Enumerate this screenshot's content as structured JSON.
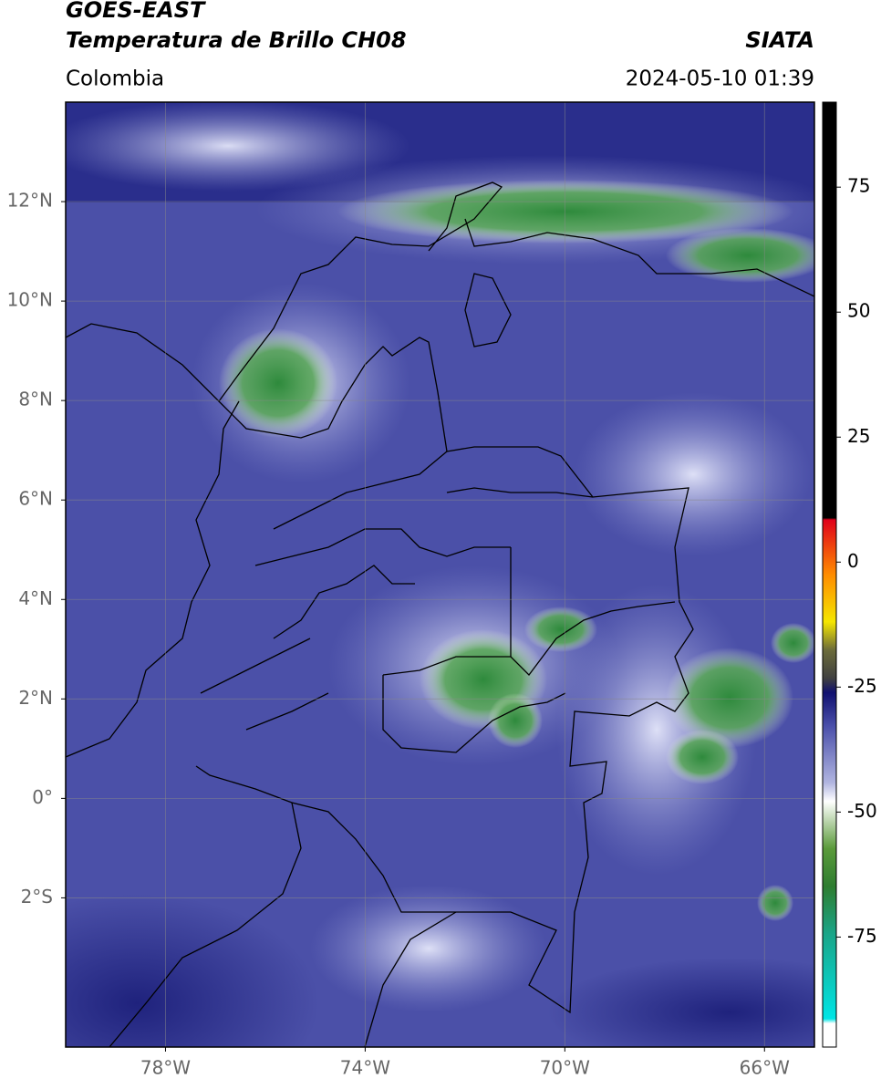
{
  "header": {
    "title_line1": "GOES-EAST",
    "title_line2": "Temperatura de Brillo CH08",
    "source": "SIATA",
    "region": "Colombia",
    "datetime": "2024-05-10 01:39"
  },
  "map": {
    "xlim": [
      -80,
      -65
    ],
    "ylim": [
      -5,
      14
    ],
    "xticks": [
      {
        "value": -78,
        "label": "78°W"
      },
      {
        "value": -74,
        "label": "74°W"
      },
      {
        "value": -70,
        "label": "70°W"
      },
      {
        "value": -66,
        "label": "66°W"
      }
    ],
    "yticks": [
      {
        "value": 12,
        "label": "12°N"
      },
      {
        "value": 10,
        "label": "10°N"
      },
      {
        "value": 8,
        "label": "8°N"
      },
      {
        "value": 6,
        "label": "6°N"
      },
      {
        "value": 4,
        "label": "4°N"
      },
      {
        "value": 2,
        "label": "2°N"
      },
      {
        "value": 0,
        "label": "0°"
      },
      {
        "value": -2,
        "label": "2°S"
      }
    ],
    "grid": true
  },
  "colorbar": {
    "lim": [
      -97,
      92
    ],
    "ticks": [
      75,
      50,
      25,
      0,
      -25,
      -50,
      -75
    ]
  }
}
